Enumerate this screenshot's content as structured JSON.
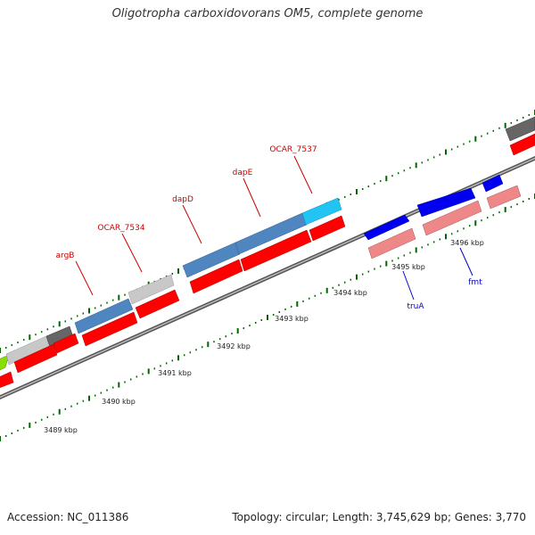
{
  "title": "Oligotropha carboxidovorans OM5, complete genome",
  "accession": "Accession: NC_011386",
  "summary": "Topology: circular; Length: 3,745,629 bp; Genes: 3,770",
  "colors": {
    "forward_label": "#cc0000",
    "reverse_label": "#0000cc",
    "cds_forward": "#ff0000",
    "cds_reverse_light": "#ee8888",
    "gene_reverse": "#0000ee",
    "gene_steelblue": "#4f86c0",
    "gene_cyan": "#22c4f4",
    "gene_gray": "#c8c8c8",
    "gene_darkgray": "#666666",
    "gene_lime": "#88e000",
    "backbone": "#777777",
    "tick_green": "#006600"
  },
  "ticks": [
    {
      "label": "3489 kbp"
    },
    {
      "label": "3490 kbp"
    },
    {
      "label": "3491 kbp"
    },
    {
      "label": "3492 kbp"
    },
    {
      "label": "3493 kbp"
    },
    {
      "label": "3494 kbp"
    },
    {
      "label": "3495 kbp"
    },
    {
      "label": "3496 kbp"
    }
  ],
  "gene_labels": [
    {
      "label": "argB",
      "strand": "forward"
    },
    {
      "label": "OCAR_7534",
      "strand": "forward"
    },
    {
      "label": "dapD",
      "strand": "forward"
    },
    {
      "label": "dapE",
      "strand": "forward"
    },
    {
      "label": "OCAR_7537",
      "strand": "forward"
    },
    {
      "label": "truA",
      "strand": "reverse"
    },
    {
      "label": "fmt",
      "strand": "reverse"
    }
  ]
}
